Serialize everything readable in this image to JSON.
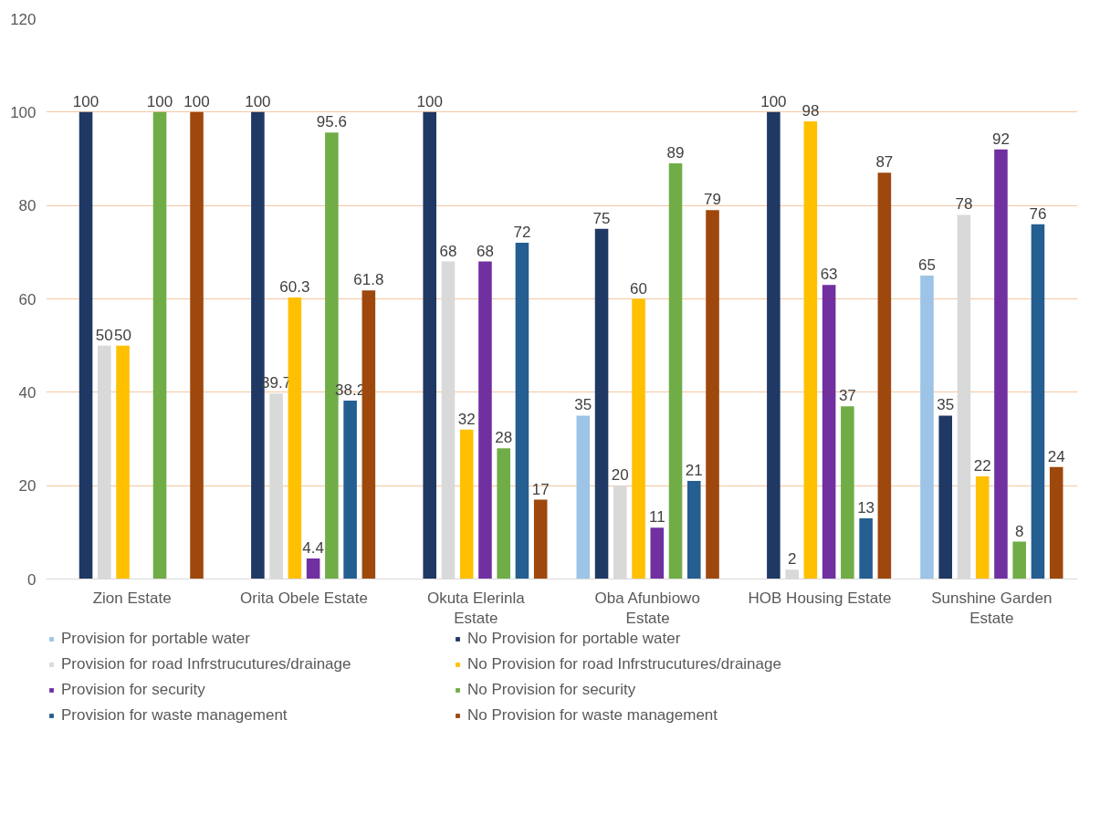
{
  "chart_data": {
    "type": "bar",
    "categories": [
      "Zion Estate",
      "Orita Obele Estate",
      "Okuta Elerinla Estate",
      "Oba Afunbiowo Estate",
      "HOB Housing Estate",
      "Sunshine Garden Estate"
    ],
    "series": [
      {
        "name": "Provision for portable water",
        "color": "#9dc3e6",
        "values": [
          null,
          null,
          null,
          35,
          null,
          65
        ]
      },
      {
        "name": "No Provision for portable water",
        "color": "#1f3864",
        "values": [
          100,
          100,
          100,
          75,
          100,
          35
        ]
      },
      {
        "name": "Provision for road Infrstrucutures/drainage",
        "color": "#d9d9d9",
        "values": [
          50,
          39.7,
          68,
          20,
          2,
          78
        ]
      },
      {
        "name": "No Provision for road Infrstrucutures/drainage",
        "color": "#ffc000",
        "values": [
          50,
          60.3,
          32,
          60,
          98,
          22
        ]
      },
      {
        "name": "Provision for security",
        "color": "#7030a0",
        "values": [
          null,
          4.4,
          68,
          11,
          63,
          92
        ]
      },
      {
        "name": "No Provision for security",
        "color": "#70ad47",
        "values": [
          100,
          95.6,
          28,
          89,
          37,
          8
        ]
      },
      {
        "name": "Provision for waste management",
        "color": "#255e91",
        "values": [
          null,
          38.2,
          72,
          21,
          13,
          76
        ]
      },
      {
        "name": "No Provision for waste management",
        "color": "#9e480e",
        "values": [
          100,
          61.8,
          17,
          79,
          87,
          24
        ]
      }
    ],
    "ylim": [
      0,
      120
    ],
    "yticks": [
      0,
      20,
      40,
      60,
      80,
      100,
      120
    ],
    "grid": "y",
    "legend": "bottom",
    "data_labels": true
  }
}
